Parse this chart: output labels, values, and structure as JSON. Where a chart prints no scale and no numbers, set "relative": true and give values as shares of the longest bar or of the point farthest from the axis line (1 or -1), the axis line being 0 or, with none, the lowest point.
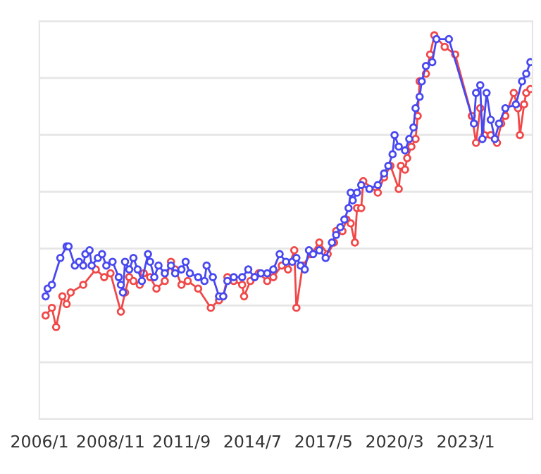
{
  "chart_data": {
    "type": "line",
    "relative": true,
    "grid": "y",
    "marker": "circle",
    "line_style": "solid",
    "xlim": [
      "2006-01",
      "2025-09"
    ],
    "xticks": [
      {
        "value": "2006-01",
        "label": "2006/1"
      },
      {
        "value": "2008-11",
        "label": "2008/11"
      },
      {
        "value": "2011-09",
        "label": "2011/9"
      },
      {
        "value": "2014-07",
        "label": "2014/7"
      },
      {
        "value": "2017-05",
        "label": "2017/5"
      },
      {
        "value": "2020-03",
        "label": "2020/3"
      },
      {
        "value": "2023-01",
        "label": "2023/1"
      }
    ],
    "series": [
      {
        "color": "#f04848",
        "x": [
          "2006-04",
          "2006-07",
          "2006-09",
          "2006-12",
          "2007-02",
          "2007-04",
          "2007-10",
          "2008-04",
          "2008-08",
          "2008-11",
          "2009-04",
          "2009-06",
          "2009-08",
          "2009-10",
          "2010-01",
          "2010-03",
          "2010-06",
          "2010-09",
          "2011-01",
          "2011-04",
          "2011-06",
          "2011-09",
          "2011-12",
          "2012-05",
          "2012-11",
          "2013-03",
          "2013-05",
          "2013-07",
          "2013-10",
          "2014-02",
          "2014-03",
          "2014-06",
          "2014-08",
          "2014-10",
          "2015-02",
          "2015-05",
          "2015-09",
          "2015-12",
          "2016-03",
          "2016-04",
          "2016-07",
          "2016-11",
          "2017-03",
          "2017-07",
          "2017-10",
          "2017-11",
          "2018-02",
          "2018-04",
          "2018-06",
          "2018-08",
          "2018-09",
          "2018-11",
          "2018-12",
          "2019-07",
          "2019-10",
          "2020-01",
          "2020-05",
          "2020-06",
          "2020-08",
          "2020-09",
          "2020-11",
          "2021-01",
          "2021-02",
          "2021-03",
          "2021-06",
          "2021-08",
          "2021-10",
          "2022-03",
          "2022-08",
          "2023-04",
          "2023-06",
          "2023-08",
          "2023-10",
          "2024-01",
          "2024-04",
          "2024-06",
          "2024-08",
          "2024-12",
          "2025-02",
          "2025-03",
          "2025-05",
          "2025-06",
          "2025-08"
        ],
        "values": [
          0.27,
          0.29,
          0.24,
          0.32,
          0.3,
          0.33,
          0.35,
          0.39,
          0.37,
          0.38,
          0.28,
          0.33,
          0.37,
          0.36,
          0.35,
          0.38,
          0.37,
          0.34,
          0.36,
          0.41,
          0.39,
          0.35,
          0.36,
          0.34,
          0.29,
          0.31,
          0.32,
          0.37,
          0.36,
          0.35,
          0.32,
          0.36,
          0.37,
          0.38,
          0.36,
          0.37,
          0.4,
          0.39,
          0.44,
          0.29,
          0.4,
          0.43,
          0.46,
          0.43,
          0.46,
          0.49,
          0.49,
          0.52,
          0.51,
          0.46,
          0.55,
          0.55,
          0.62,
          0.59,
          0.63,
          0.66,
          0.6,
          0.66,
          0.65,
          0.68,
          0.71,
          0.73,
          0.79,
          0.88,
          0.9,
          0.95,
          1.0,
          0.97,
          0.95,
          0.79,
          0.72,
          0.81,
          0.74,
          0.74,
          0.72,
          0.77,
          0.79,
          0.85,
          0.81,
          0.74,
          0.82,
          0.85,
          0.86
        ]
      },
      {
        "color": "#4848f0",
        "x": [
          "2006-04",
          "2006-05",
          "2006-07",
          "2006-11",
          "2007-02",
          "2007-03",
          "2007-06",
          "2007-08",
          "2007-10",
          "2007-11",
          "2008-01",
          "2008-02",
          "2008-05",
          "2008-07",
          "2008-09",
          "2008-12",
          "2009-03",
          "2009-04",
          "2009-05",
          "2009-06",
          "2009-08",
          "2009-10",
          "2009-12",
          "2010-02",
          "2010-05",
          "2010-06",
          "2010-08",
          "2010-10",
          "2011-01",
          "2011-04",
          "2011-06",
          "2011-09",
          "2011-11",
          "2012-01",
          "2012-05",
          "2012-08",
          "2012-09",
          "2012-12",
          "2013-03",
          "2013-05",
          "2013-07",
          "2013-10",
          "2014-02",
          "2014-05",
          "2014-08",
          "2014-11",
          "2015-02",
          "2015-05",
          "2015-08",
          "2015-11",
          "2016-02",
          "2016-04",
          "2016-06",
          "2016-08",
          "2016-10",
          "2016-12",
          "2017-03",
          "2017-06",
          "2017-09",
          "2017-11",
          "2018-01",
          "2018-03",
          "2018-05",
          "2018-06",
          "2018-07",
          "2018-09",
          "2018-11",
          "2019-03",
          "2019-07",
          "2019-10",
          "2019-12",
          "2020-02",
          "2020-03",
          "2020-05",
          "2020-08",
          "2020-10",
          "2020-12",
          "2021-01",
          "2021-03",
          "2021-04",
          "2021-06",
          "2021-09",
          "2021-11",
          "2022-05",
          "2023-05",
          "2023-06",
          "2023-08",
          "2023-09",
          "2023-11",
          "2024-01",
          "2024-03",
          "2024-05",
          "2024-08",
          "2025-01",
          "2025-04",
          "2025-06",
          "2025-08"
        ],
        "values": [
          0.32,
          0.34,
          0.35,
          0.42,
          0.45,
          0.45,
          0.4,
          0.41,
          0.4,
          0.43,
          0.44,
          0.4,
          0.42,
          0.43,
          0.4,
          0.41,
          0.37,
          0.35,
          0.33,
          0.41,
          0.39,
          0.42,
          0.39,
          0.36,
          0.43,
          0.41,
          0.37,
          0.4,
          0.38,
          0.4,
          0.38,
          0.39,
          0.41,
          0.38,
          0.37,
          0.36,
          0.4,
          0.37,
          0.32,
          0.32,
          0.36,
          0.37,
          0.37,
          0.39,
          0.37,
          0.38,
          0.38,
          0.39,
          0.43,
          0.41,
          0.41,
          0.42,
          0.4,
          0.39,
          0.44,
          0.43,
          0.44,
          0.42,
          0.46,
          0.48,
          0.5,
          0.52,
          0.55,
          0.59,
          0.57,
          0.59,
          0.61,
          0.6,
          0.61,
          0.64,
          0.66,
          0.69,
          0.74,
          0.71,
          0.7,
          0.73,
          0.76,
          0.81,
          0.84,
          0.88,
          0.92,
          0.93,
          0.99,
          0.99,
          0.77,
          0.85,
          0.87,
          0.73,
          0.85,
          0.78,
          0.73,
          0.77,
          0.81,
          0.82,
          0.88,
          0.9,
          0.93
        ]
      }
    ]
  }
}
